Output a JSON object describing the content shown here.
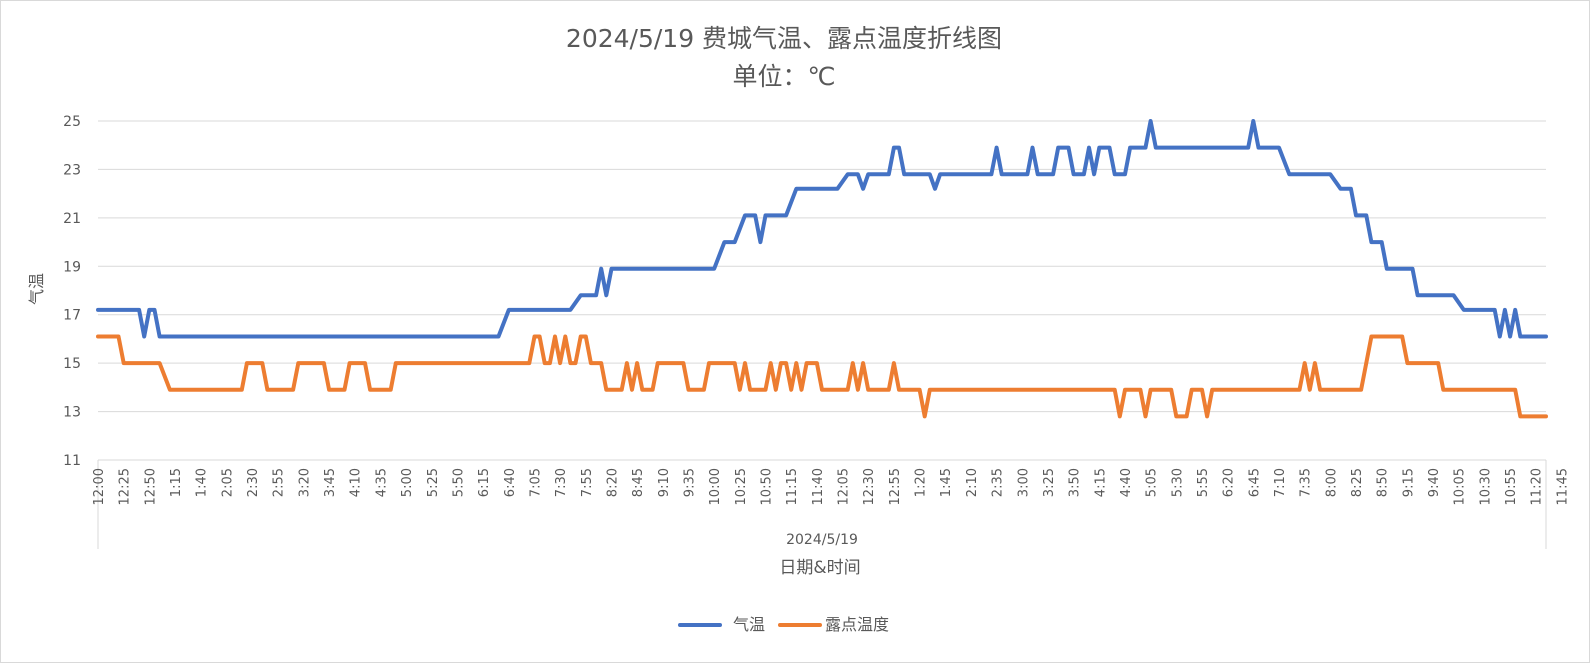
{
  "chart_data": {
    "type": "line",
    "title": "2024/5/19 费城气温、露点温度折线图",
    "subtitle": "单位：℃",
    "ylabel": "气温",
    "xlabel": "日期&时间",
    "x_group_label": "2024/5/19",
    "ylim": [
      11,
      25
    ],
    "yticks": [
      11,
      13,
      15,
      17,
      19,
      21,
      23,
      25
    ],
    "grid": true,
    "legend_position": "bottom",
    "x_tick_labels": [
      "12:00",
      "12:25",
      "12:50",
      "1:15",
      "1:40",
      "2:05",
      "2:30",
      "2:55",
      "3:20",
      "3:45",
      "4:10",
      "4:35",
      "5:00",
      "5:25",
      "5:50",
      "6:15",
      "6:40",
      "7:05",
      "7:30",
      "7:55",
      "8:20",
      "8:45",
      "9:10",
      "9:35",
      "10:00",
      "10:25",
      "10:50",
      "11:15",
      "11:40",
      "12:05",
      "12:30",
      "12:55",
      "1:20",
      "1:45",
      "2:10",
      "2:35",
      "3:00",
      "3:25",
      "3:50",
      "4:15",
      "4:40",
      "5:05",
      "5:30",
      "5:55",
      "6:20",
      "6:45",
      "7:10",
      "7:35",
      "8:00",
      "8:25",
      "8:50",
      "9:15",
      "9:40",
      "10:05",
      "10:30",
      "10:55",
      "11:20",
      "11:45"
    ],
    "series": [
      {
        "name": "气温",
        "color": "#4472C4",
        "points": [
          [
            0,
            17.2
          ],
          [
            4,
            17.2
          ],
          [
            4.5,
            16.1
          ],
          [
            5,
            17.2
          ],
          [
            5.5,
            17.2
          ],
          [
            6,
            16.1
          ],
          [
            39,
            16.1
          ],
          [
            40,
            17.2
          ],
          [
            46,
            17.2
          ],
          [
            47,
            17.8
          ],
          [
            48.5,
            17.8
          ],
          [
            49,
            18.9
          ],
          [
            49.5,
            17.8
          ],
          [
            50,
            18.9
          ],
          [
            60,
            18.9
          ],
          [
            61,
            20
          ],
          [
            62,
            20
          ],
          [
            63,
            21.1
          ],
          [
            64,
            21.1
          ],
          [
            64.5,
            20
          ],
          [
            65,
            21.1
          ],
          [
            67,
            21.1
          ],
          [
            68,
            22.2
          ],
          [
            72,
            22.2
          ],
          [
            73,
            22.8
          ],
          [
            74,
            22.8
          ],
          [
            74.5,
            22.2
          ],
          [
            75,
            22.8
          ],
          [
            77,
            22.8
          ],
          [
            77.5,
            23.9
          ],
          [
            78,
            23.9
          ],
          [
            78.5,
            22.8
          ],
          [
            81,
            22.8
          ],
          [
            81.5,
            22.2
          ],
          [
            82,
            22.8
          ],
          [
            87,
            22.8
          ],
          [
            87.5,
            23.9
          ],
          [
            88,
            22.8
          ],
          [
            90.5,
            22.8
          ],
          [
            91,
            23.9
          ],
          [
            91.5,
            22.8
          ],
          [
            93,
            22.8
          ],
          [
            93.5,
            23.9
          ],
          [
            94.5,
            23.9
          ],
          [
            95,
            22.8
          ],
          [
            96,
            22.8
          ],
          [
            96.5,
            23.9
          ],
          [
            97,
            22.8
          ],
          [
            97.5,
            23.9
          ],
          [
            98.5,
            23.9
          ],
          [
            99,
            22.8
          ],
          [
            100,
            22.8
          ],
          [
            100.5,
            23.9
          ],
          [
            102,
            23.9
          ],
          [
            102.5,
            25
          ],
          [
            103,
            23.9
          ],
          [
            112,
            23.9
          ],
          [
            112.5,
            25
          ],
          [
            113,
            23.9
          ],
          [
            115,
            23.9
          ],
          [
            116,
            22.8
          ],
          [
            120,
            22.8
          ],
          [
            121,
            22.2
          ],
          [
            122,
            22.2
          ],
          [
            122.5,
            21.1
          ],
          [
            123.5,
            21.1
          ],
          [
            124,
            20
          ],
          [
            125,
            20
          ],
          [
            125.5,
            18.9
          ],
          [
            128,
            18.9
          ],
          [
            128.5,
            17.8
          ],
          [
            132,
            17.8
          ],
          [
            133,
            17.2
          ],
          [
            136,
            17.2
          ],
          [
            136.5,
            16.1
          ],
          [
            137,
            17.2
          ],
          [
            137.5,
            16.1
          ],
          [
            138,
            17.2
          ],
          [
            138.5,
            16.1
          ],
          [
            141,
            16.1
          ]
        ]
      },
      {
        "name": "露点温度",
        "color": "#ED7D31",
        "points": [
          [
            0,
            16.1
          ],
          [
            2,
            16.1
          ],
          [
            2.5,
            15
          ],
          [
            6,
            15
          ],
          [
            7,
            13.9
          ],
          [
            14,
            13.9
          ],
          [
            14.5,
            15
          ],
          [
            16,
            15
          ],
          [
            16.5,
            13.9
          ],
          [
            19,
            13.9
          ],
          [
            19.5,
            15
          ],
          [
            22,
            15
          ],
          [
            22.5,
            13.9
          ],
          [
            24,
            13.9
          ],
          [
            24.5,
            15
          ],
          [
            26,
            15
          ],
          [
            26.5,
            13.9
          ],
          [
            28.5,
            13.9
          ],
          [
            29,
            15
          ],
          [
            42,
            15
          ],
          [
            42.5,
            16.1
          ],
          [
            43,
            16.1
          ],
          [
            43.5,
            15
          ],
          [
            44,
            15
          ],
          [
            44.5,
            16.1
          ],
          [
            45,
            15
          ],
          [
            45.5,
            16.1
          ],
          [
            46,
            15
          ],
          [
            46.5,
            15
          ],
          [
            47,
            16.1
          ],
          [
            47.5,
            16.1
          ],
          [
            48,
            15
          ],
          [
            49,
            15
          ],
          [
            49.5,
            13.9
          ],
          [
            51,
            13.9
          ],
          [
            51.5,
            15
          ],
          [
            52,
            13.9
          ],
          [
            52.5,
            15
          ],
          [
            53,
            13.9
          ],
          [
            54,
            13.9
          ],
          [
            54.5,
            15
          ],
          [
            57,
            15
          ],
          [
            57.5,
            13.9
          ],
          [
            59,
            13.9
          ],
          [
            59.5,
            15
          ],
          [
            62,
            15
          ],
          [
            62.5,
            13.9
          ],
          [
            63,
            15
          ],
          [
            63.5,
            13.9
          ],
          [
            65,
            13.9
          ],
          [
            65.5,
            15
          ],
          [
            66,
            13.9
          ],
          [
            66.5,
            15
          ],
          [
            67,
            15
          ],
          [
            67.5,
            13.9
          ],
          [
            68,
            15
          ],
          [
            68.5,
            13.9
          ],
          [
            69,
            15
          ],
          [
            70,
            15
          ],
          [
            70.5,
            13.9
          ],
          [
            73,
            13.9
          ],
          [
            73.5,
            15
          ],
          [
            74,
            13.9
          ],
          [
            74.5,
            15
          ],
          [
            75,
            13.9
          ],
          [
            77,
            13.9
          ],
          [
            77.5,
            15
          ],
          [
            78,
            13.9
          ],
          [
            80,
            13.9
          ],
          [
            80.5,
            12.8
          ],
          [
            81,
            13.9
          ],
          [
            99,
            13.9
          ],
          [
            99.5,
            12.8
          ],
          [
            100,
            13.9
          ],
          [
            101.5,
            13.9
          ],
          [
            102,
            12.8
          ],
          [
            102.5,
            13.9
          ],
          [
            104.5,
            13.9
          ],
          [
            105,
            12.8
          ],
          [
            106,
            12.8
          ],
          [
            106.5,
            13.9
          ],
          [
            107.5,
            13.9
          ],
          [
            108,
            12.8
          ],
          [
            108.5,
            13.9
          ],
          [
            117,
            13.9
          ],
          [
            117.5,
            15
          ],
          [
            118,
            13.9
          ],
          [
            118.5,
            15
          ],
          [
            119,
            13.9
          ],
          [
            123,
            13.9
          ],
          [
            124,
            16.1
          ],
          [
            127,
            16.1
          ],
          [
            127.5,
            15
          ],
          [
            130.5,
            15
          ],
          [
            131,
            13.9
          ],
          [
            138,
            13.9
          ],
          [
            138.5,
            12.8
          ],
          [
            141,
            12.8
          ]
        ]
      }
    ]
  }
}
